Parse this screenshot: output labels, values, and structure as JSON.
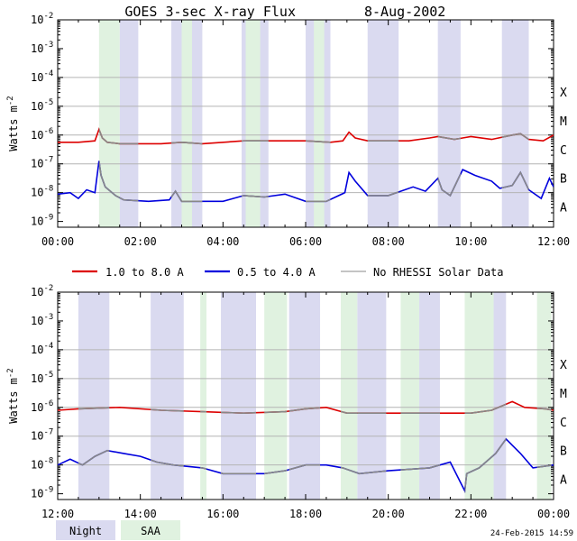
{
  "title": "GOES 3-sec X-ray Flux",
  "date": "8-Aug-2002",
  "ylabel": "Watts m",
  "ylabel_exp": "-2",
  "y_ticks": [
    {
      "base": "10",
      "exp": "-2",
      "value": -2
    },
    {
      "base": "10",
      "exp": "-3",
      "value": -3
    },
    {
      "base": "10",
      "exp": "-4",
      "value": -4
    },
    {
      "base": "10",
      "exp": "-5",
      "value": -5
    },
    {
      "base": "10",
      "exp": "-6",
      "value": -6
    },
    {
      "base": "10",
      "exp": "-7",
      "value": -7
    },
    {
      "base": "10",
      "exp": "-8",
      "value": -8
    },
    {
      "base": "10",
      "exp": "-9",
      "value": -9
    }
  ],
  "flare_classes": [
    {
      "label": "X",
      "value": -4
    },
    {
      "label": "M",
      "value": -5
    },
    {
      "label": "C",
      "value": -6
    },
    {
      "label": "B",
      "value": -7
    },
    {
      "label": "A",
      "value": -8
    }
  ],
  "legend": {
    "long": "1.0 to 8.0 A",
    "short": "0.5 to 4.0 A",
    "nodata": "No RHESSI Solar Data"
  },
  "bottom_legend": {
    "night": "Night",
    "saa": "SAA"
  },
  "timestamp": "24-Feb-2015 14:59",
  "colors": {
    "long": "#dd0000",
    "short": "#0000dd",
    "nodata": "#888888",
    "night": "#dadaf0",
    "saa": "#e0f2e0",
    "grid": "#b4b4b4"
  },
  "chart_data": [
    {
      "type": "line",
      "panel": "top",
      "x_range_hours": [
        0,
        12
      ],
      "x_ticks": [
        "00:00",
        "02:00",
        "04:00",
        "06:00",
        "08:00",
        "10:00",
        "12:00"
      ],
      "ylim_log10": [
        -9.2,
        -2
      ],
      "night_hours": [
        [
          1.5,
          1.95
        ],
        [
          2.75,
          3.5
        ],
        [
          4.45,
          5.1
        ],
        [
          6.0,
          6.6
        ],
        [
          7.5,
          8.25
        ],
        [
          9.2,
          9.75
        ],
        [
          10.75,
          11.4
        ]
      ],
      "saa_hours": [
        [
          1.0,
          1.5
        ],
        [
          3.0,
          3.25
        ],
        [
          4.55,
          4.9
        ],
        [
          6.2,
          6.45
        ]
      ],
      "series": [
        {
          "name": "1.0 to 8.0 A",
          "points": [
            [
              0,
              -6.25
            ],
            [
              0.5,
              -6.25
            ],
            [
              0.9,
              -6.2
            ],
            [
              1.0,
              -5.8
            ],
            [
              1.08,
              -6.1
            ],
            [
              1.2,
              -6.25
            ],
            [
              1.5,
              -6.3
            ],
            [
              2.5,
              -6.3
            ],
            [
              3.0,
              -6.25
            ],
            [
              3.5,
              -6.3
            ],
            [
              4.5,
              -6.2
            ],
            [
              5.5,
              -6.2
            ],
            [
              6.0,
              -6.2
            ],
            [
              6.6,
              -6.25
            ],
            [
              6.9,
              -6.2
            ],
            [
              7.05,
              -5.9
            ],
            [
              7.2,
              -6.1
            ],
            [
              7.5,
              -6.2
            ],
            [
              8.5,
              -6.2
            ],
            [
              9.0,
              -6.1
            ],
            [
              9.2,
              -6.05
            ],
            [
              9.6,
              -6.15
            ],
            [
              9.8,
              -6.1
            ],
            [
              10.0,
              -6.05
            ],
            [
              10.5,
              -6.15
            ],
            [
              11.0,
              -6.0
            ],
            [
              11.2,
              -5.95
            ],
            [
              11.4,
              -6.15
            ],
            [
              11.75,
              -6.2
            ],
            [
              12.0,
              -6.0
            ]
          ]
        },
        {
          "name": "0.5 to 4.0 A",
          "points": [
            [
              0,
              -8.05
            ],
            [
              0.3,
              -8.0
            ],
            [
              0.5,
              -8.2
            ],
            [
              0.7,
              -7.9
            ],
            [
              0.9,
              -8.0
            ],
            [
              1.0,
              -6.9
            ],
            [
              1.05,
              -7.4
            ],
            [
              1.15,
              -7.8
            ],
            [
              1.4,
              -8.1
            ],
            [
              1.6,
              -8.25
            ],
            [
              2.2,
              -8.3
            ],
            [
              2.7,
              -8.25
            ],
            [
              2.85,
              -7.95
            ],
            [
              3.0,
              -8.3
            ],
            [
              4.0,
              -8.3
            ],
            [
              4.5,
              -8.1
            ],
            [
              5.0,
              -8.15
            ],
            [
              5.5,
              -8.05
            ],
            [
              6.0,
              -8.3
            ],
            [
              6.5,
              -8.3
            ],
            [
              6.95,
              -8.0
            ],
            [
              7.05,
              -7.3
            ],
            [
              7.2,
              -7.6
            ],
            [
              7.5,
              -8.1
            ],
            [
              8.0,
              -8.1
            ],
            [
              8.6,
              -7.8
            ],
            [
              8.9,
              -7.95
            ],
            [
              9.2,
              -7.5
            ],
            [
              9.3,
              -7.9
            ],
            [
              9.5,
              -8.1
            ],
            [
              9.8,
              -7.2
            ],
            [
              10.1,
              -7.4
            ],
            [
              10.5,
              -7.6
            ],
            [
              10.7,
              -7.85
            ],
            [
              11.0,
              -7.75
            ],
            [
              11.2,
              -7.3
            ],
            [
              11.4,
              -7.9
            ],
            [
              11.7,
              -8.2
            ],
            [
              11.9,
              -7.5
            ],
            [
              12.0,
              -7.8
            ]
          ]
        }
      ]
    },
    {
      "type": "line",
      "panel": "bottom",
      "x_range_hours": [
        12,
        24
      ],
      "x_ticks": [
        "12:00",
        "14:00",
        "16:00",
        "18:00",
        "20:00",
        "22:00",
        "00:00"
      ],
      "ylim_log10": [
        -9.2,
        -2
      ],
      "night_hours": [
        [
          12.5,
          13.25
        ],
        [
          14.25,
          15.05
        ],
        [
          15.95,
          16.8
        ],
        [
          17.6,
          18.35
        ],
        [
          19.25,
          19.95
        ],
        [
          20.75,
          21.25
        ],
        [
          22.55,
          22.85
        ]
      ],
      "saa_hours": [
        [
          15.45,
          15.6
        ],
        [
          17.0,
          17.55
        ],
        [
          18.85,
          19.25
        ],
        [
          20.3,
          20.75
        ],
        [
          21.85,
          22.55
        ],
        [
          23.6,
          23.95
        ]
      ],
      "series": [
        {
          "name": "1.0 to 8.0 A",
          "points": [
            [
              12,
              -6.1
            ],
            [
              12.5,
              -6.05
            ],
            [
              13.5,
              -6.0
            ],
            [
              14.5,
              -6.1
            ],
            [
              15.5,
              -6.15
            ],
            [
              16.5,
              -6.2
            ],
            [
              17.5,
              -6.15
            ],
            [
              18.0,
              -6.05
            ],
            [
              18.5,
              -6.0
            ],
            [
              19.0,
              -6.2
            ],
            [
              20.0,
              -6.2
            ],
            [
              21.0,
              -6.2
            ],
            [
              22.0,
              -6.2
            ],
            [
              22.5,
              -6.1
            ],
            [
              23.0,
              -5.8
            ],
            [
              23.3,
              -6.0
            ],
            [
              23.8,
              -6.05
            ],
            [
              24,
              -6.1
            ]
          ]
        },
        {
          "name": "0.5 to 4.0 A",
          "points": [
            [
              12,
              -8.0
            ],
            [
              12.3,
              -7.8
            ],
            [
              12.6,
              -8.0
            ],
            [
              12.9,
              -7.7
            ],
            [
              13.2,
              -7.5
            ],
            [
              13.6,
              -7.6
            ],
            [
              14.0,
              -7.7
            ],
            [
              14.4,
              -7.9
            ],
            [
              14.8,
              -8.0
            ],
            [
              15.5,
              -8.1
            ],
            [
              16.0,
              -8.3
            ],
            [
              17.0,
              -8.3
            ],
            [
              17.5,
              -8.2
            ],
            [
              18.0,
              -8.0
            ],
            [
              18.5,
              -8.0
            ],
            [
              18.9,
              -8.1
            ],
            [
              19.3,
              -8.3
            ],
            [
              20.0,
              -8.2
            ],
            [
              21.0,
              -8.1
            ],
            [
              21.5,
              -7.9
            ],
            [
              21.85,
              -8.9
            ],
            [
              21.9,
              -8.3
            ],
            [
              22.2,
              -8.1
            ],
            [
              22.6,
              -7.6
            ],
            [
              22.85,
              -7.1
            ],
            [
              23.2,
              -7.6
            ],
            [
              23.5,
              -8.1
            ],
            [
              24,
              -8.0
            ]
          ]
        }
      ]
    }
  ]
}
